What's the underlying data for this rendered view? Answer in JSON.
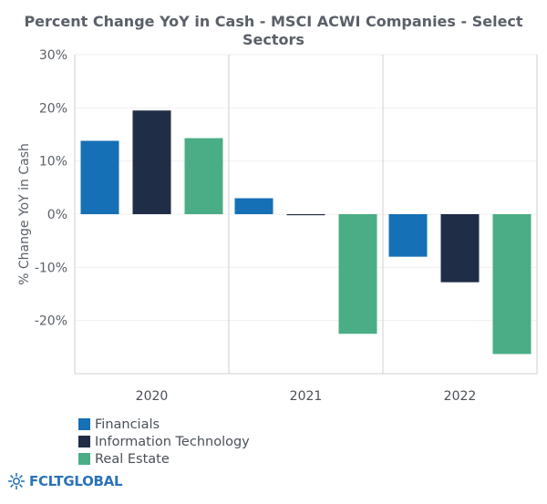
{
  "chart_data": {
    "type": "bar",
    "title": "Percent Change YoY in Cash - MSCI ACWI Companies - Select Sectors",
    "title_lines": [
      "Percent Change YoY in Cash - MSCI ACWI Companies - Select",
      "Sectors"
    ],
    "ylabel": "% Change YoY in Cash",
    "xlabel": "",
    "ylim": [
      -30,
      30
    ],
    "yticks": [
      30,
      20,
      10,
      0,
      -10,
      -20
    ],
    "ytick_labels": [
      "30%",
      "20%",
      "10%",
      "0%",
      "-10%",
      "-20%"
    ],
    "categories": [
      "2020",
      "2021",
      "2022"
    ],
    "series": [
      {
        "name": "Financials",
        "color": "#1570b5",
        "values": [
          13.8,
          3.0,
          -8.0
        ]
      },
      {
        "name": "Information Technology",
        "color": "#1f2d47",
        "values": [
          19.5,
          -0.2,
          -12.8
        ]
      },
      {
        "name": "Real Estate",
        "color": "#4aad85",
        "values": [
          14.3,
          -22.5,
          -26.3
        ]
      }
    ],
    "grid": true,
    "legend_position": "bottom-left"
  },
  "branding": {
    "logo_text": "FCLTGLOBAL",
    "logo_icon": "sunburst-icon",
    "logo_color": "#2a73b8"
  }
}
